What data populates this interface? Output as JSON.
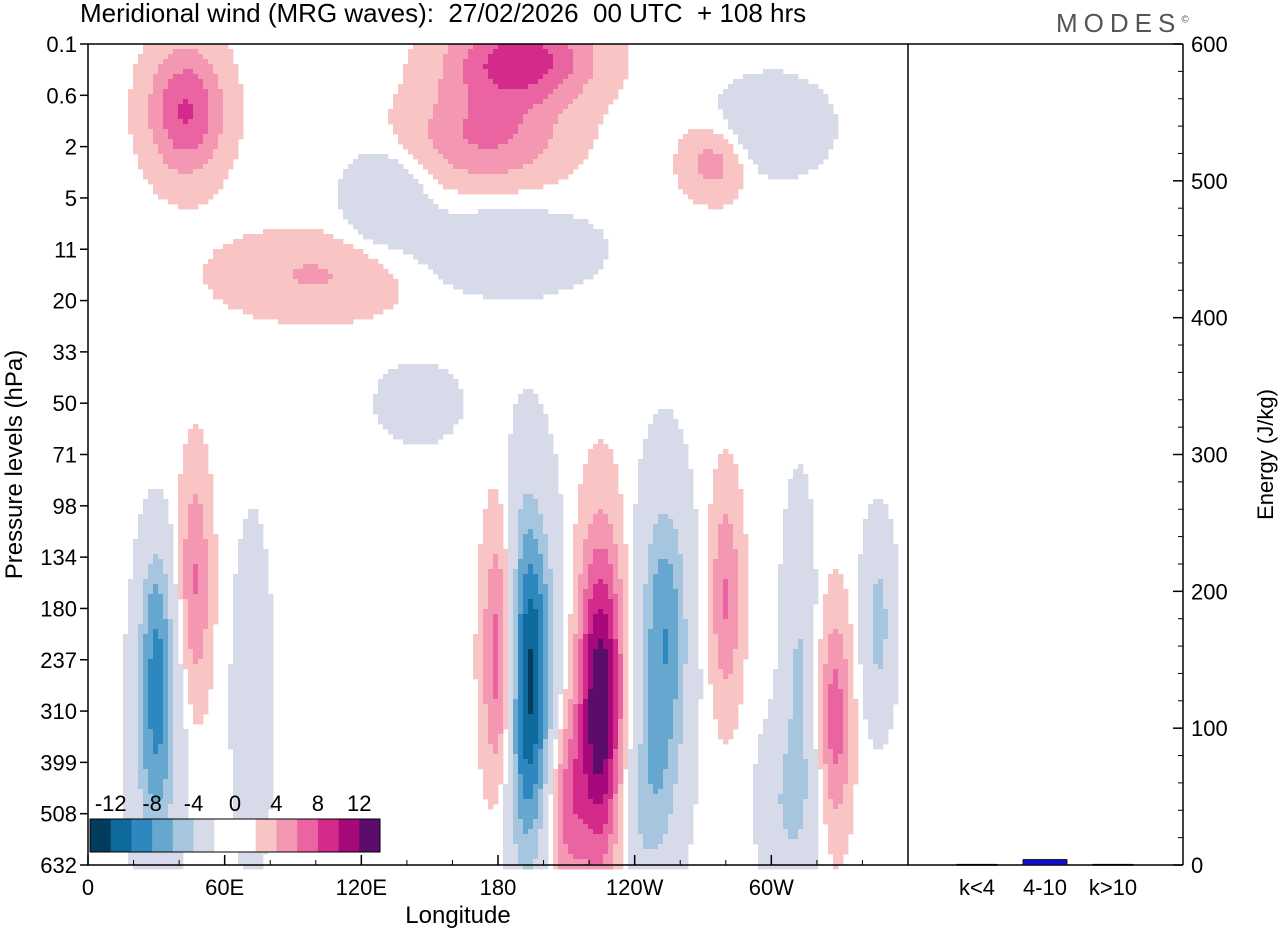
{
  "header": {
    "title": "Meridional wind (MRG waves):  27/02/2026  00 UTC  + 108 hrs",
    "brand": "MODES",
    "brand_mark": "©"
  },
  "chart_data": [
    {
      "type": "heatmap",
      "title": "Meridional wind (MRG waves)",
      "xlabel": "Longitude",
      "ylabel": "Pressure levels (hPa)",
      "x_ticks": [
        "0",
        "60E",
        "120E",
        "180",
        "120W",
        "60W"
      ],
      "x_tick_degrees": [
        0,
        60,
        120,
        180,
        240,
        300
      ],
      "x_range_degrees": [
        0,
        360
      ],
      "y_ticks": [
        "0.1",
        "0.6",
        "2",
        "5",
        "11",
        "20",
        "33",
        "50",
        "71",
        "98",
        "134",
        "180",
        "237",
        "310",
        "399",
        "508",
        "632"
      ],
      "colorbar": {
        "labels": [
          "-12",
          "-8",
          "-4",
          "0",
          "4",
          "8",
          "12"
        ],
        "colors": [
          "#033d5e",
          "#0f6a9c",
          "#2e87bf",
          "#65a7cf",
          "#a6c6e0",
          "#d7dbe9",
          "#ffffff",
          "#ffffff",
          "#f9c5c4",
          "#f497b3",
          "#ea64a2",
          "#d42a8c",
          "#a7087a",
          "#5c0d6b"
        ]
      },
      "blobs": [
        {
          "lon": 191,
          "lev": 12.4,
          "rx": 9,
          "ry": 2.4,
          "v": -15
        },
        {
          "lon": 182,
          "lev": 12.1,
          "rx": 6,
          "ry": 2.0,
          "v": 13
        },
        {
          "lon": 225,
          "lev": 12.9,
          "rx": 7,
          "ry": 2.2,
          "v": 13
        },
        {
          "lon": 253,
          "lev": 11.6,
          "rx": 8,
          "ry": 2.1,
          "v": -8
        },
        {
          "lon": 30,
          "lev": 13.4,
          "rx": 7,
          "ry": 1.8,
          "v": -8
        },
        {
          "lon": 30,
          "lev": 11.0,
          "rx": 5,
          "ry": 1.2,
          "v": -4
        },
        {
          "lon": 47,
          "lev": 10.5,
          "rx": 5,
          "ry": 1.6,
          "v": 5
        },
        {
          "lon": 210,
          "lev": 14.8,
          "rx": 6,
          "ry": 1.3,
          "v": 6
        },
        {
          "lon": 280,
          "lev": 10.8,
          "rx": 5,
          "ry": 1.5,
          "v": 5
        },
        {
          "lon": 312,
          "lev": 11.8,
          "rx": 5,
          "ry": 2.0,
          "v": -4
        },
        {
          "lon": 328,
          "lev": 13.2,
          "rx": 5,
          "ry": 1.5,
          "v": 6
        },
        {
          "lon": 347,
          "lev": 11.3,
          "rx": 5,
          "ry": 1.3,
          "v": -5
        },
        {
          "lon": 245,
          "lev": 14.9,
          "rx": 9,
          "ry": 1.3,
          "v": -4
        },
        {
          "lon": 308,
          "lev": 14.8,
          "rx": 9,
          "ry": 1.2,
          "v": -4
        },
        {
          "lon": 72,
          "lev": 12.8,
          "rx": 6,
          "ry": 2.3,
          "v": -3
        },
        {
          "lon": 43,
          "lev": 1.3,
          "rx": 12,
          "ry": 0.9,
          "v": 7
        },
        {
          "lon": 190,
          "lev": 0.3,
          "rx": 22,
          "ry": 0.6,
          "v": 8
        },
        {
          "lon": 175,
          "lev": 1.8,
          "rx": 24,
          "ry": 0.7,
          "v": 5
        },
        {
          "lon": 130,
          "lev": 3.0,
          "rx": 12,
          "ry": 0.6,
          "v": -4
        },
        {
          "lon": 300,
          "lev": 1.6,
          "rx": 16,
          "ry": 0.6,
          "v": -4
        },
        {
          "lon": 275,
          "lev": 2.3,
          "rx": 10,
          "ry": 0.5,
          "v": 4
        },
        {
          "lon": 180,
          "lev": 4.0,
          "rx": 30,
          "ry": 0.6,
          "v": -3
        },
        {
          "lon": 100,
          "lev": 4.5,
          "rx": 30,
          "ry": 0.6,
          "v": 3
        },
        {
          "lon": 145,
          "lev": 7.0,
          "rx": 12,
          "ry": 0.5,
          "v": -3
        }
      ]
    },
    {
      "type": "bar",
      "title": "",
      "xlabel": "",
      "ylabel": "Energy (J/kg)",
      "categories": [
        "k<4",
        "4-10",
        "k>10"
      ],
      "values": [
        0.5,
        4,
        0.5
      ],
      "ylim": [
        0,
        600
      ],
      "y_ticks": [
        "0",
        "100",
        "200",
        "300",
        "400",
        "500",
        "600"
      ]
    }
  ]
}
